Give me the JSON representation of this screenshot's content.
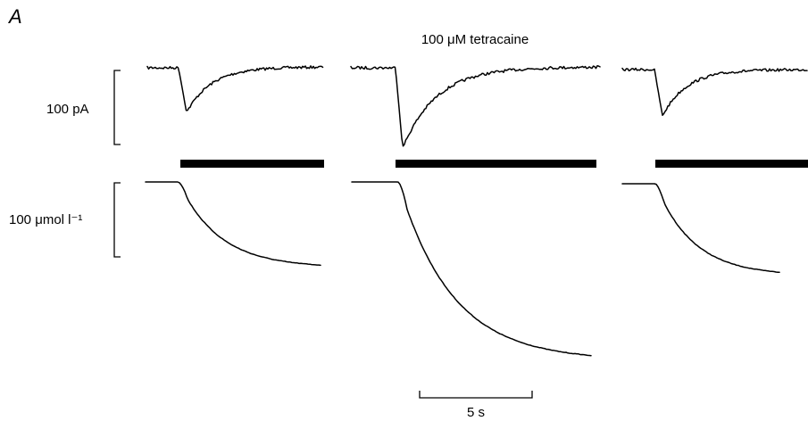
{
  "panel_label": "A",
  "condition_label": "100 μM tetracaine",
  "current_scale_label": "100 pA",
  "concentration_scale_label": "100 μmol l⁻¹",
  "time_scale_label": "5 s",
  "accent_color": "#000000"
}
